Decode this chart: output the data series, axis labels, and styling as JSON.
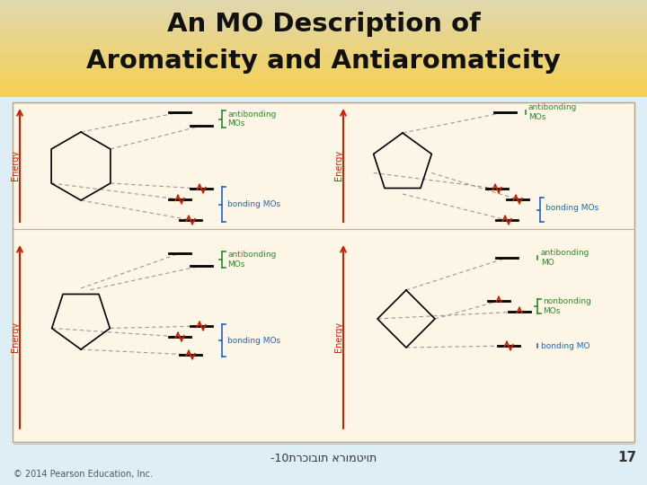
{
  "title_line1": "An MO Description of",
  "title_line2": "Aromaticity and Antiaromaticity",
  "slide_bg": "#ddeef6",
  "content_bg": "#fdf5e6",
  "content_border": "#c8a878",
  "footer_text": "-10תרכובות ארומטיות",
  "footer_number": "17",
  "copyright_text": "© 2014 Pearson Education, Inc.",
  "energy_label": "Energy",
  "red": "#cc2200",
  "green": "#2d8a2d",
  "blue": "#1a66cc",
  "gray": "#888888"
}
